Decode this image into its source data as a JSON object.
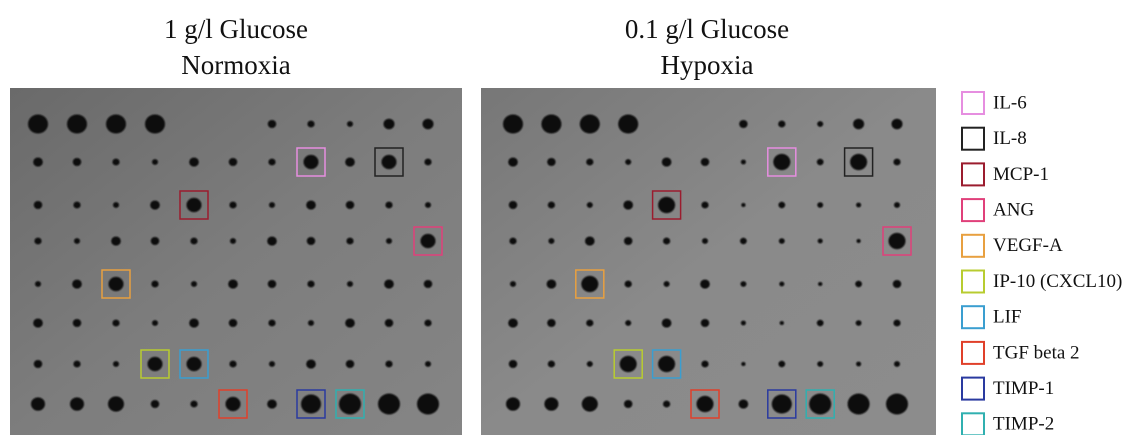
{
  "panels": [
    {
      "title_lines": [
        "1 g/l Glucose",
        "Normoxia"
      ]
    },
    {
      "title_lines": [
        "0.1 g/l Glucose",
        "Hypoxia"
      ]
    }
  ],
  "legend": [
    {
      "label": "IL-6",
      "color": "#e68ee0"
    },
    {
      "label": "IL-8",
      "color": "#222222"
    },
    {
      "label": "MCP-1",
      "color": "#9b1c2e"
    },
    {
      "label": "ANG",
      "color": "#e0407a"
    },
    {
      "label": "VEGF-A",
      "color": "#e8a040"
    },
    {
      "label": "IP-10 (CXCL10)",
      "color": "#b8cc30"
    },
    {
      "label": "LIF",
      "color": "#3a9ed0"
    },
    {
      "label": "TGF beta 2",
      "color": "#e0402a"
    },
    {
      "label": "TIMP-1",
      "color": "#2a3aa0"
    },
    {
      "label": "TIMP-2",
      "color": "#30b0b0"
    }
  ]
}
